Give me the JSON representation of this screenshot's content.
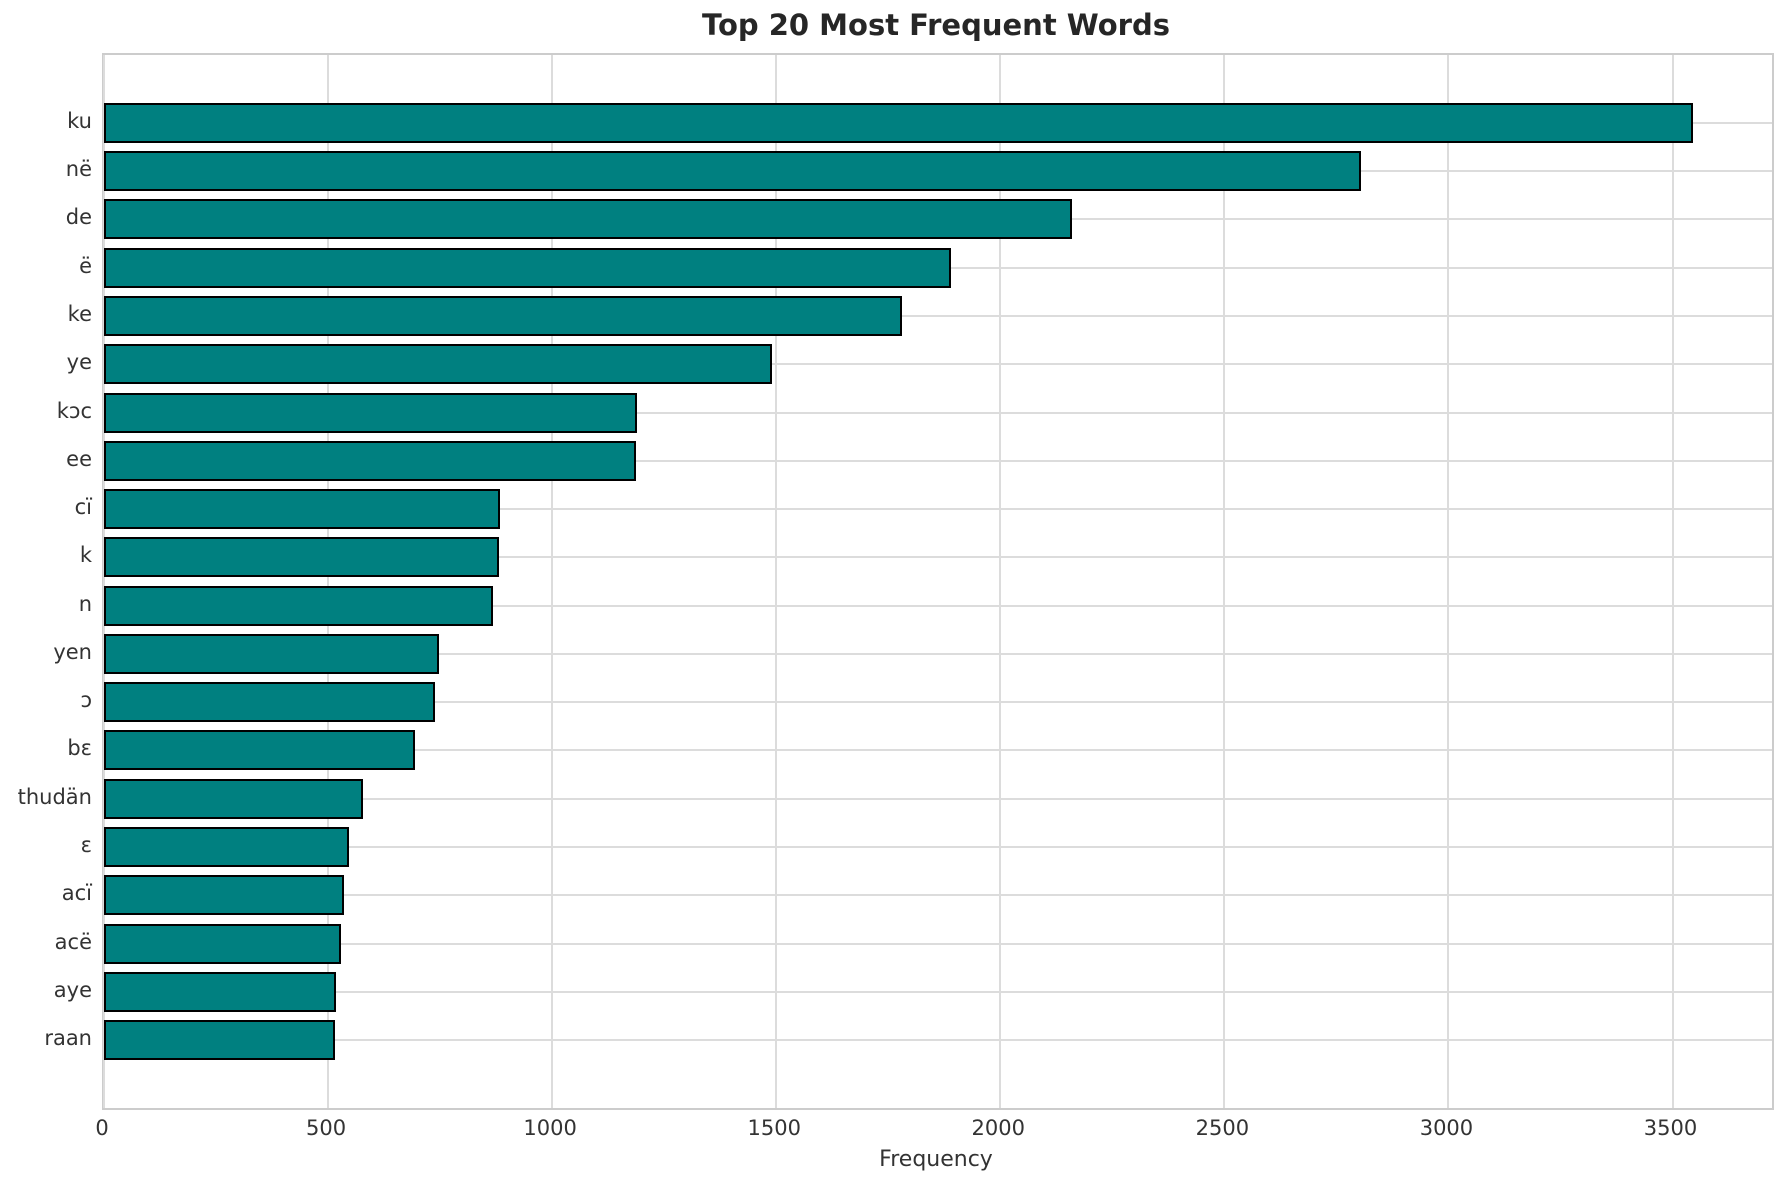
{
  "colors": {
    "bar_fill": "#008080",
    "bar_edge": "#000000",
    "grid": "#dcdcdc",
    "spine": "#cccccc",
    "title_text": "#262626",
    "tick_text": "#333333"
  },
  "chart_data": {
    "type": "bar",
    "orientation": "horizontal",
    "title": "Top 20 Most Frequent Words",
    "xlabel": "Frequency",
    "ylabel": "",
    "categories": [
      "ku",
      "në",
      "de",
      "ë",
      "ke",
      "ye",
      "kɔc",
      "ee",
      "cï",
      "k",
      "n",
      "yen",
      "ɔ",
      "bɛ",
      "thudän",
      "ɛ",
      "acï",
      "acë",
      "aye",
      "raan"
    ],
    "values": [
      3545,
      2805,
      2160,
      1890,
      1780,
      1490,
      1190,
      1187,
      884,
      882,
      868,
      747,
      738,
      695,
      577,
      546,
      536,
      528,
      517,
      516
    ],
    "xticks": [
      0,
      500,
      1000,
      1500,
      2000,
      2500,
      3000,
      3500
    ],
    "xtick_labels": [
      "0",
      "500",
      "1000",
      "1500",
      "2000",
      "2500",
      "3000",
      "3500"
    ],
    "xlim": [
      0,
      3722
    ],
    "grid": true,
    "legend": false
  }
}
